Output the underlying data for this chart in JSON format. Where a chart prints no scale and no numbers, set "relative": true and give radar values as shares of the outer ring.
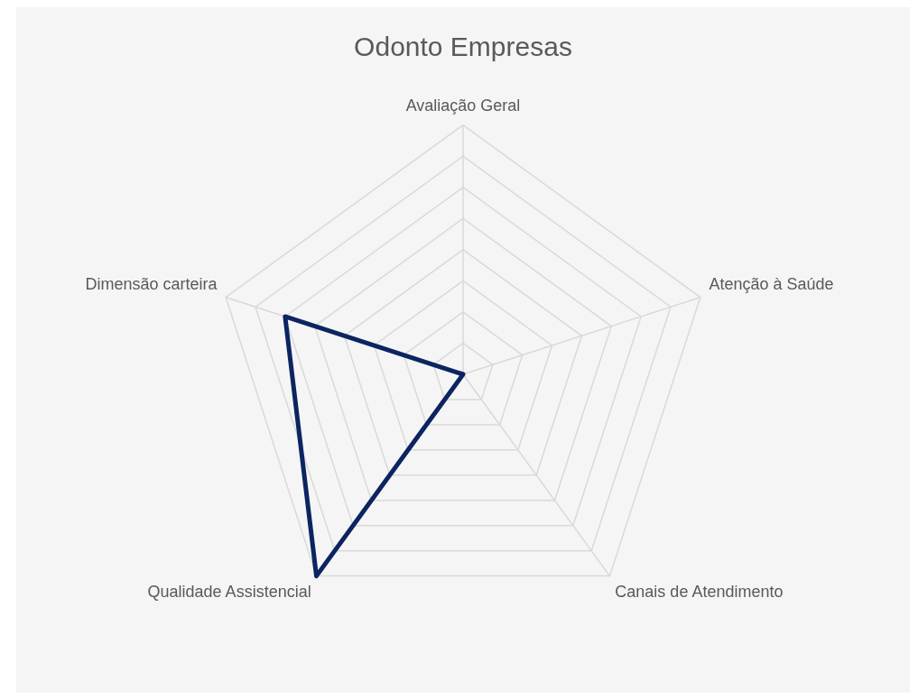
{
  "chart_data": {
    "type": "radar",
    "title": "Odonto Empresas",
    "relative": true,
    "categories": [
      "Avaliação Geral",
      "Atenção à Saúde",
      "Canais de Atendimento",
      "Qualidade Assistencial",
      "Dimensão carteira"
    ],
    "series": [
      {
        "color": "#0c2461",
        "values": [
          0,
          0,
          0,
          1,
          0.75
        ]
      }
    ],
    "marker": "none",
    "legend": false,
    "grid": true
  }
}
